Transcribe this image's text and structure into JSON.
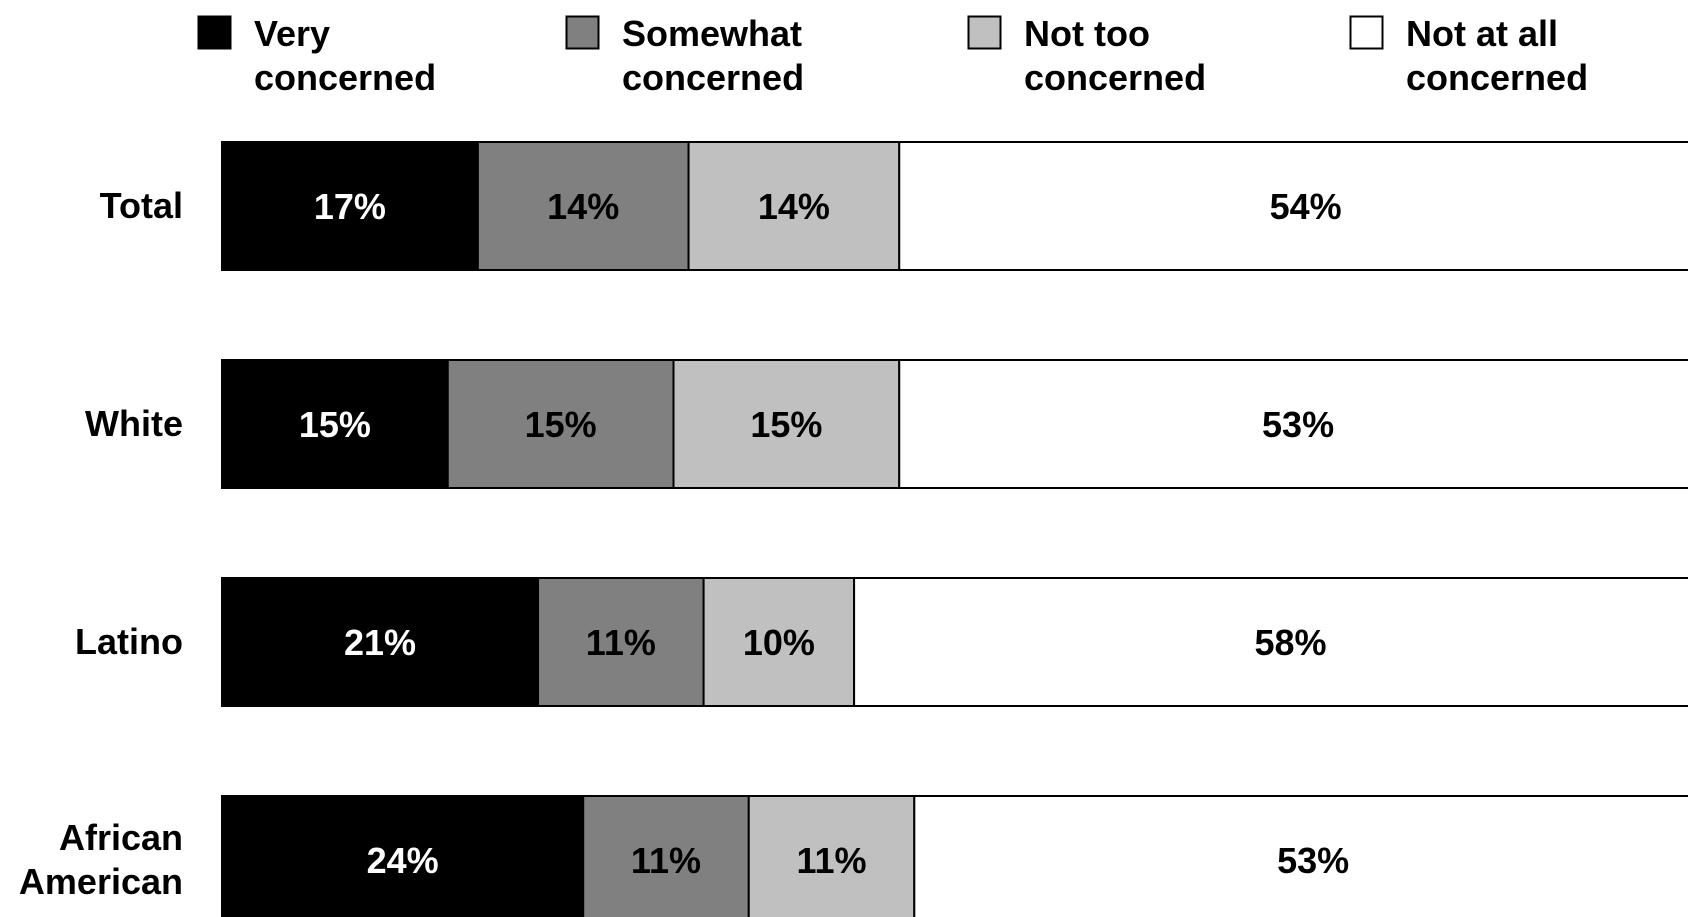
{
  "chart_data": {
    "type": "bar",
    "orientation": "horizontal",
    "stacked": true,
    "title": "",
    "xlabel": "",
    "ylabel": "",
    "categories": [
      [
        "Total"
      ],
      [
        "White"
      ],
      [
        "Latino"
      ],
      [
        "African",
        "American"
      ]
    ],
    "series": [
      {
        "name": [
          "Very",
          "concerned"
        ],
        "color": "#000000",
        "label_color": "#ffffff",
        "values": [
          17,
          15,
          21,
          24
        ]
      },
      {
        "name": [
          "Somewhat",
          "concerned"
        ],
        "color": "#808080",
        "label_color": "#000000",
        "values": [
          14,
          15,
          11,
          11
        ]
      },
      {
        "name": [
          "Not too",
          "concerned"
        ],
        "color": "#c0c0c0",
        "label_color": "#000000",
        "values": [
          14,
          15,
          10,
          11
        ]
      },
      {
        "name": [
          "Not at all",
          "concerned"
        ],
        "color": "#ffffff",
        "label_color": "#000000",
        "values": [
          54,
          53,
          58,
          53
        ]
      }
    ],
    "value_suffix": "%",
    "xlim": [
      0,
      100
    ],
    "legend_position": "top",
    "grid": false
  }
}
